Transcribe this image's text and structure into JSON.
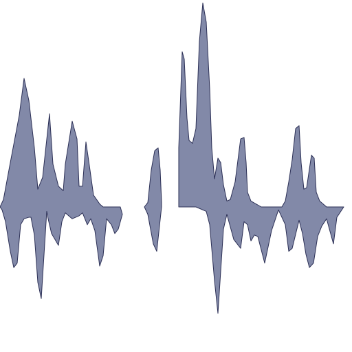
{
  "chart_data": {
    "type": "area",
    "title": "",
    "xlabel": "",
    "ylabel": "",
    "baseline": 0,
    "grid": false,
    "legend": false,
    "colors": {
      "fill": "#8289a8",
      "stroke": "#2b2f55"
    },
    "series": [
      {
        "segments": [
          {
            "points": [
              [
                0,
                0
              ],
              [
                0.5,
                0.05
              ],
              [
                1.5,
                0.3
              ],
              [
                2.8,
                0.62
              ],
              [
                3.5,
                0.87
              ],
              [
                4.2,
                0.72
              ],
              [
                5.0,
                0.4
              ],
              [
                5.5,
                0.12
              ],
              [
                6.2,
                0.2
              ],
              [
                7.2,
                0.63
              ],
              [
                7.7,
                0.29
              ],
              [
                8.5,
                0.14
              ],
              [
                9.2,
                0.11
              ],
              [
                9.5,
                0.29
              ],
              [
                10.5,
                0.58
              ],
              [
                11.2,
                0.46
              ],
              [
                11.5,
                0.14
              ],
              [
                12.0,
                0.14
              ],
              [
                12.5,
                0.44
              ],
              [
                13.0,
                0.28
              ],
              [
                13.6,
                0.08
              ],
              [
                14.5,
                0.02
              ],
              [
                15.0,
                0
              ],
              [
                16.5,
                0
              ],
              [
                17.5,
                0
              ],
              [
                17.8,
                -0.05
              ],
              [
                17.2,
                -0.15
              ],
              [
                16.7,
                -0.18
              ],
              [
                16.2,
                -0.12
              ],
              [
                15.5,
                -0.08
              ],
              [
                15.0,
                -0.33
              ],
              [
                14.5,
                -0.4
              ],
              [
                13.8,
                -0.16
              ],
              [
                13.2,
                -0.08
              ],
              [
                12.7,
                -0.12
              ],
              [
                12.0,
                -0.04
              ],
              [
                11.5,
                -0.06
              ],
              [
                10.5,
                -0.08
              ],
              [
                9.5,
                -0.04
              ],
              [
                9.0,
                -0.1
              ],
              [
                8.5,
                -0.26
              ],
              [
                7.5,
                -0.18
              ],
              [
                7.0,
                -0.08
              ],
              [
                6.8,
                -0.03
              ],
              [
                6.5,
                -0.25
              ],
              [
                6.0,
                -0.62
              ],
              [
                5.5,
                -0.51
              ],
              [
                5.0,
                -0.19
              ],
              [
                4.5,
                -0.07
              ],
              [
                4.2,
                -0.07
              ],
              [
                3.5,
                -0.08
              ],
              [
                3.0,
                -0.12
              ],
              [
                2.5,
                -0.38
              ],
              [
                2.0,
                -0.41
              ],
              [
                1.5,
                -0.3
              ],
              [
                0.8,
                -0.1
              ],
              [
                0.3,
                -0.02
              ]
            ]
          },
          {
            "points": [
              [
                21.0,
                0
              ],
              [
                21.5,
                0.03
              ],
              [
                22.0,
                0.25
              ],
              [
                22.5,
                0.38
              ],
              [
                23.0,
                0.4
              ],
              [
                23.3,
                0.25
              ],
              [
                23.5,
                0.03
              ],
              [
                23.5,
                0
              ],
              [
                22.8,
                -0.3
              ],
              [
                22.3,
                -0.25
              ],
              [
                21.5,
                -0.05
              ]
            ]
          },
          {
            "points": [
              [
                26.0,
                0
              ],
              [
                26.0,
                0.4
              ],
              [
                26.5,
                1.05
              ],
              [
                26.8,
                1.0
              ],
              [
                27.2,
                0.6
              ],
              [
                27.5,
                0.45
              ],
              [
                28.0,
                0.43
              ],
              [
                28.5,
                0.53
              ],
              [
                29.0,
                1.12
              ],
              [
                29.5,
                1.38
              ],
              [
                30.0,
                1.25
              ],
              [
                30.5,
                0.8
              ],
              [
                30.8,
                0.4
              ],
              [
                31.2,
                0.19
              ],
              [
                31.7,
                0.33
              ],
              [
                32.1,
                0.3
              ],
              [
                32.5,
                0.15
              ],
              [
                33.0,
                0.04
              ],
              [
                33.5,
                0.05
              ],
              [
                34.2,
                0.17
              ],
              [
                35.0,
                0.46
              ],
              [
                35.5,
                0.47
              ],
              [
                35.8,
                0.3
              ],
              [
                36.0,
                0.1
              ],
              [
                36.5,
                0.04
              ],
              [
                38.0,
                0
              ],
              [
                40.5,
                0
              ],
              [
                41.0,
                0
              ],
              [
                41.5,
                0.04
              ],
              [
                42.0,
                0.17
              ],
              [
                42.5,
                0.32
              ],
              [
                43.0,
                0.53
              ],
              [
                43.5,
                0.55
              ],
              [
                43.8,
                0.3
              ],
              [
                44.2,
                0.12
              ],
              [
                44.6,
                0.13
              ],
              [
                45.3,
                0.35
              ],
              [
                45.7,
                0.33
              ],
              [
                46.0,
                0.1
              ],
              [
                46.5,
                0.04
              ],
              [
                47.5,
                0
              ],
              [
                50.0,
                0
              ],
              [
                49.0,
                -0.07
              ],
              [
                48.5,
                -0.25
              ],
              [
                47.5,
                -0.08
              ],
              [
                46.8,
                -0.13
              ],
              [
                46.2,
                -0.2
              ],
              [
                45.6,
                -0.38
              ],
              [
                45.0,
                -0.41
              ],
              [
                44.5,
                -0.32
              ],
              [
                44.0,
                -0.18
              ],
              [
                43.5,
                -0.09
              ],
              [
                42.5,
                -0.28
              ],
              [
                42.0,
                -0.3
              ],
              [
                41.5,
                -0.12
              ],
              [
                40.5,
                -0.02
              ],
              [
                39.5,
                -0.16
              ],
              [
                38.5,
                -0.38
              ],
              [
                37.5,
                -0.2
              ],
              [
                37.0,
                -0.19
              ],
              [
                36.5,
                -0.23
              ],
              [
                36.0,
                -0.12
              ],
              [
                35.5,
                -0.1
              ],
              [
                35.0,
                -0.28
              ],
              [
                34.0,
                -0.22
              ],
              [
                33.0,
                -0.05
              ],
              [
                32.5,
                -0.15
              ],
              [
                31.7,
                -0.72
              ],
              [
                31.2,
                -0.5
              ],
              [
                30.5,
                -0.12
              ],
              [
                30.0,
                -0.03
              ],
              [
                28.5,
                0
              ],
              [
                26.0,
                0
              ]
            ]
          }
        ]
      }
    ]
  }
}
